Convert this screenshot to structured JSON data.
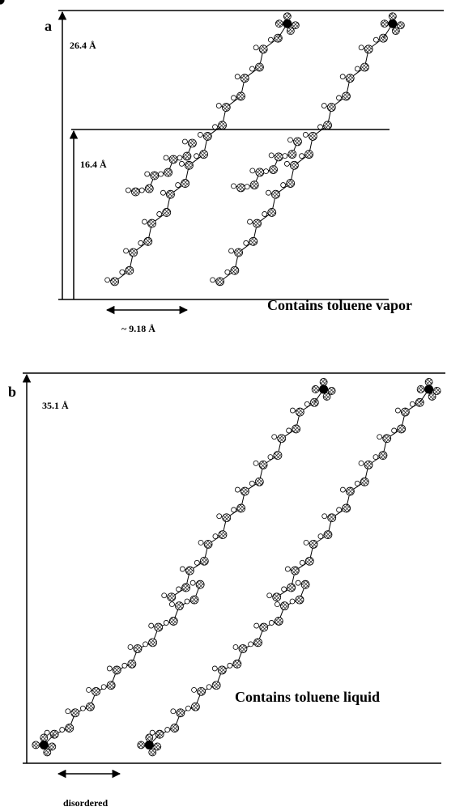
{
  "panel_a": {
    "label": "a",
    "height_long": "26.4 Å",
    "height_short": "16.4 Å",
    "note": "Contains toluene vapor",
    "spacing": "~ 9.18 Å"
  },
  "panel_b": {
    "label": "b",
    "height": "35.1 Å",
    "note": "Contains toluene liquid",
    "disorder": "disordered"
  }
}
